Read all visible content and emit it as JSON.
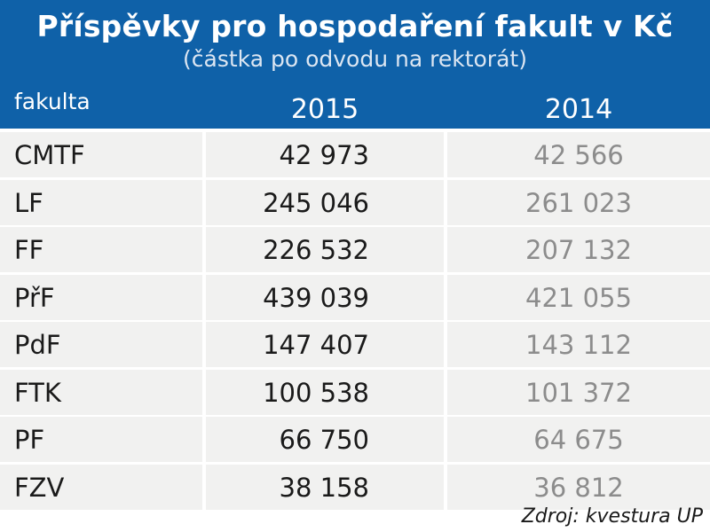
{
  "colors": {
    "header_bg": "#0f61a8",
    "cell_bg": "#f1f1f0",
    "value_2015": "#1a1a1a",
    "value_2014": "#8c8c8c"
  },
  "chart_data": {
    "type": "table",
    "title": "Příspěvky pro hospodaření fakult v Kč",
    "subtitle": "(částka po odvodu na rektorát)",
    "columns": [
      "fakulta",
      "2015",
      "2014"
    ],
    "rows": [
      {
        "name": "CMTF",
        "y2015": "42 973",
        "y2014": "42 566"
      },
      {
        "name": "LF",
        "y2015": "245 046",
        "y2014": "261 023"
      },
      {
        "name": "FF",
        "y2015": "226 532",
        "y2014": "207 132"
      },
      {
        "name": "PřF",
        "y2015": "439 039",
        "y2014": "421 055"
      },
      {
        "name": "PdF",
        "y2015": "147 407",
        "y2014": "143 112"
      },
      {
        "name": "FTK",
        "y2015": "100 538",
        "y2014": "101 372"
      },
      {
        "name": "PF",
        "y2015": "66 750",
        "y2014": "64 675"
      },
      {
        "name": "FZV",
        "y2015": "38 158",
        "y2014": "36 812"
      }
    ],
    "source": "Zdroj: kvestura UP"
  }
}
